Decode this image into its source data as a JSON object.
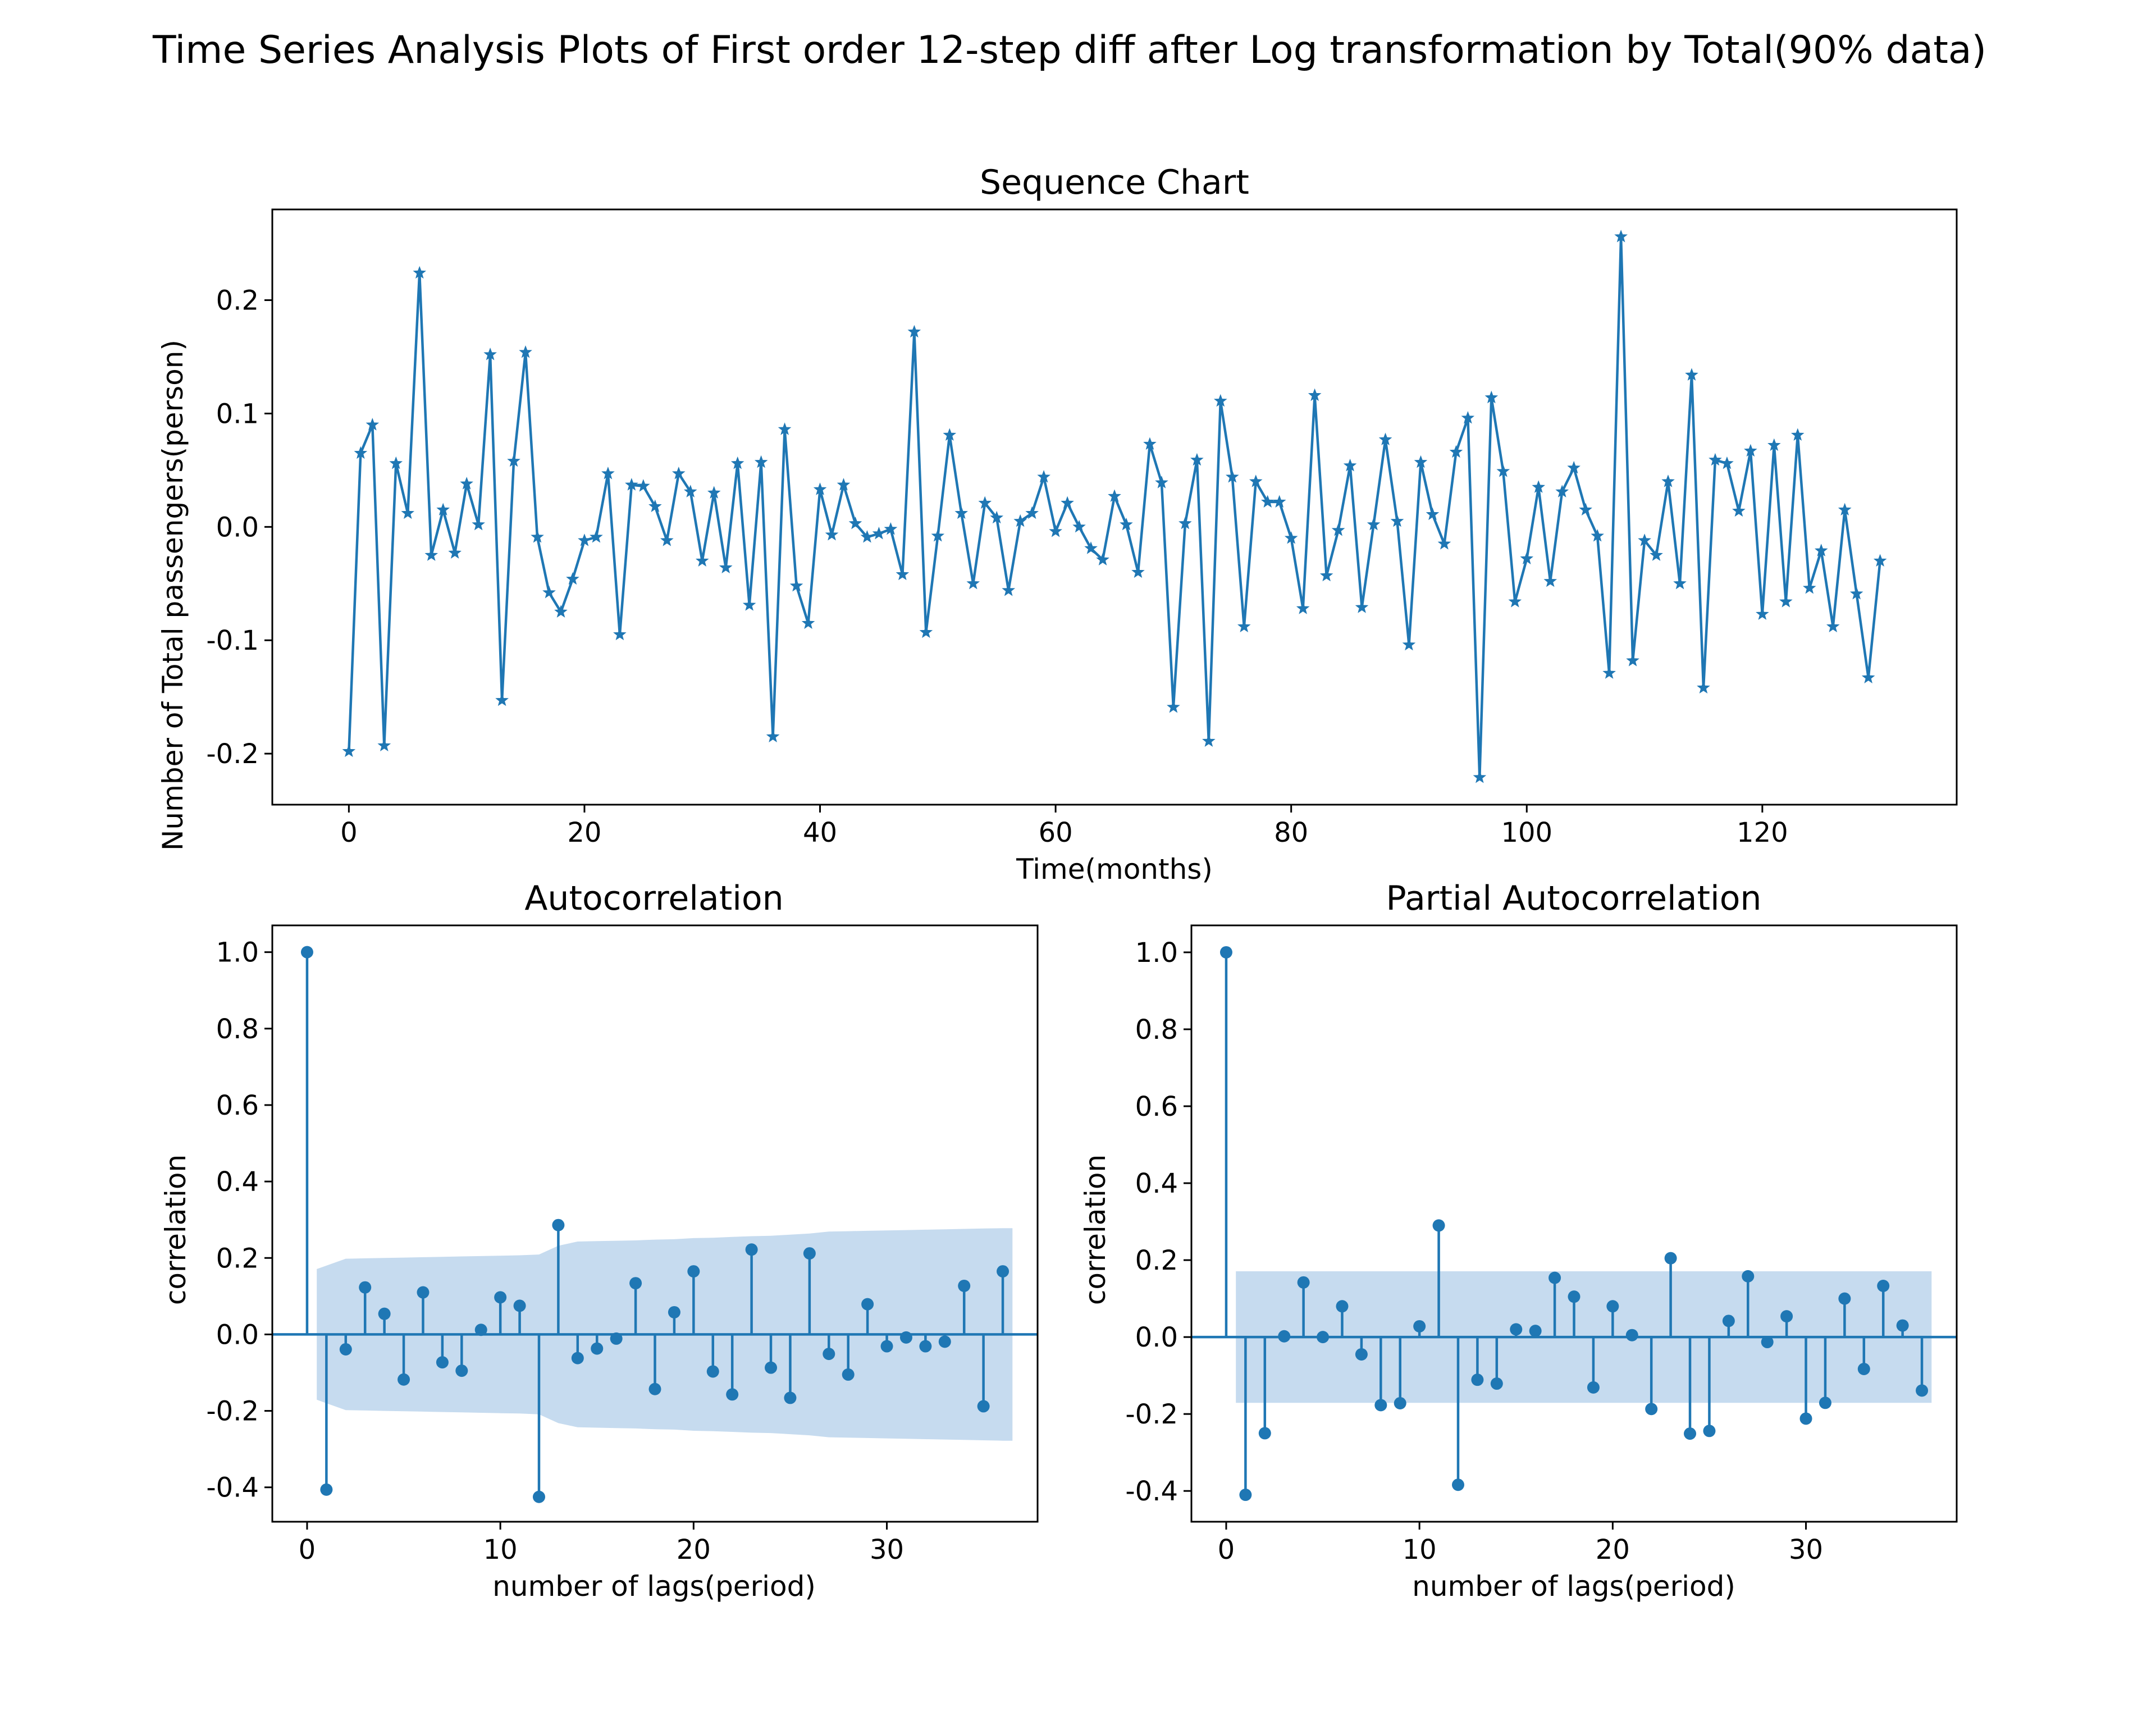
{
  "figure": {
    "suptitle": "Time Series Analysis Plots of First order 12-step diff after Log transformation by Total(90% data)"
  },
  "chart_data": [
    {
      "type": "line",
      "title": "Sequence Chart",
      "xlabel": "Time(months)",
      "ylabel": "Number of Total passengers(person)",
      "marker": "star",
      "color": "#1f77b4",
      "xlim": [
        -6.5,
        136.5
      ],
      "ylim": [
        -0.245,
        0.28
      ],
      "xticks": [
        0,
        20,
        40,
        60,
        80,
        100,
        120
      ],
      "xtick_labels": [
        "0",
        "20",
        "40",
        "60",
        "80",
        "100",
        "120"
      ],
      "yticks": [
        -0.2,
        -0.1,
        0.0,
        0.1,
        0.2
      ],
      "ytick_labels": [
        "-0.2",
        "-0.1",
        "0.0",
        "0.1",
        "0.2"
      ],
      "x_start": 0,
      "values": [
        -0.198,
        0.065,
        0.09,
        -0.193,
        0.056,
        0.012,
        0.224,
        -0.025,
        0.015,
        -0.023,
        0.038,
        0.002,
        0.152,
        -0.153,
        0.058,
        0.154,
        -0.009,
        -0.058,
        -0.075,
        -0.046,
        -0.012,
        -0.009,
        0.047,
        -0.095,
        0.037,
        0.036,
        0.018,
        -0.012,
        0.047,
        0.031,
        -0.03,
        0.03,
        -0.036,
        0.056,
        -0.069,
        0.057,
        -0.185,
        0.086,
        -0.052,
        -0.085,
        0.033,
        -0.007,
        0.037,
        0.003,
        -0.009,
        -0.006,
        -0.002,
        -0.042,
        0.172,
        -0.093,
        -0.008,
        0.081,
        0.012,
        -0.05,
        0.021,
        0.008,
        -0.056,
        0.005,
        0.012,
        0.044,
        -0.004,
        0.021,
        0.0,
        -0.019,
        -0.029,
        0.027,
        0.002,
        -0.04,
        0.073,
        0.039,
        -0.159,
        0.003,
        0.059,
        -0.189,
        0.111,
        0.044,
        -0.088,
        0.04,
        0.022,
        0.022,
        -0.01,
        -0.072,
        0.116,
        -0.043,
        -0.003,
        0.054,
        -0.071,
        0.002,
        0.077,
        0.005,
        -0.104,
        0.057,
        0.011,
        -0.015,
        0.066,
        0.096,
        -0.221,
        0.114,
        0.049,
        -0.066,
        -0.028,
        0.035,
        -0.048,
        0.031,
        0.052,
        0.015,
        -0.008,
        -0.129,
        0.256,
        -0.118,
        -0.012,
        -0.025,
        0.04,
        -0.05,
        0.134,
        -0.142,
        0.059,
        0.056,
        0.014,
        0.067,
        -0.077,
        0.072,
        -0.066,
        0.081,
        -0.054,
        -0.021,
        -0.088,
        0.015,
        -0.059,
        -0.133,
        -0.03
      ]
    },
    {
      "type": "stem",
      "title": "Autocorrelation",
      "xlabel": "number of lags(period)",
      "ylabel": "correlation",
      "color": "#1f77b4",
      "band_color": "#c6dbef",
      "xlim": [
        -1.8,
        37.8
      ],
      "ylim": [
        -0.49,
        1.07
      ],
      "xticks": [
        0,
        10,
        20,
        30
      ],
      "xtick_labels": [
        "0",
        "10",
        "20",
        "30"
      ],
      "yticks": [
        -0.4,
        -0.2,
        0.0,
        0.2,
        0.4,
        0.6,
        0.8,
        1.0
      ],
      "ytick_labels": [
        "-0.4",
        "-0.2",
        "0.0",
        "0.2",
        "0.4",
        "0.6",
        "0.8",
        "1.0"
      ],
      "lags": [
        0,
        1,
        2,
        3,
        4,
        5,
        6,
        7,
        8,
        9,
        10,
        11,
        12,
        13,
        14,
        15,
        16,
        17,
        18,
        19,
        20,
        21,
        22,
        23,
        24,
        25,
        26,
        27,
        28,
        29,
        30,
        31,
        32,
        33,
        34,
        35,
        36
      ],
      "values": [
        1.0,
        -0.406,
        -0.039,
        0.123,
        0.054,
        -0.118,
        0.11,
        -0.073,
        -0.095,
        0.012,
        0.097,
        0.075,
        -0.425,
        0.286,
        -0.062,
        -0.037,
        -0.011,
        0.134,
        -0.143,
        0.058,
        0.165,
        -0.097,
        -0.157,
        0.222,
        -0.087,
        -0.166,
        0.212,
        -0.051,
        -0.105,
        0.079,
        -0.031,
        -0.008,
        -0.031,
        -0.019,
        0.127,
        -0.188,
        0.165
      ],
      "confidence_band": {
        "lags": [
          0.5,
          1,
          2,
          3,
          4,
          5,
          6,
          7,
          8,
          9,
          10,
          11,
          12,
          13,
          14,
          15,
          16,
          17,
          18,
          19,
          20,
          21,
          22,
          23,
          24,
          25,
          26,
          27,
          28,
          29,
          30,
          31,
          32,
          33,
          34,
          35,
          36,
          36.5
        ],
        "upper": [
          0.171,
          0.18,
          0.198,
          0.199,
          0.2,
          0.201,
          0.202,
          0.203,
          0.204,
          0.205,
          0.206,
          0.207,
          0.209,
          0.232,
          0.243,
          0.244,
          0.245,
          0.246,
          0.248,
          0.249,
          0.252,
          0.253,
          0.255,
          0.257,
          0.258,
          0.261,
          0.264,
          0.269,
          0.27,
          0.271,
          0.272,
          0.273,
          0.274,
          0.275,
          0.276,
          0.277,
          0.278,
          0.278
        ]
      }
    },
    {
      "type": "stem",
      "title": "Partial Autocorrelation",
      "xlabel": "number of lags(period)",
      "ylabel": "correlation",
      "color": "#1f77b4",
      "band_color": "#c6dbef",
      "xlim": [
        -1.8,
        37.8
      ],
      "ylim": [
        -0.48,
        1.07
      ],
      "xticks": [
        0,
        10,
        20,
        30
      ],
      "xtick_labels": [
        "0",
        "10",
        "20",
        "30"
      ],
      "yticks": [
        -0.4,
        -0.2,
        0.0,
        0.2,
        0.4,
        0.6,
        0.8,
        1.0
      ],
      "ytick_labels": [
        "-0.4",
        "-0.2",
        "0.0",
        "0.2",
        "0.4",
        "0.6",
        "0.8",
        "1.0"
      ],
      "lags": [
        0,
        1,
        2,
        3,
        4,
        5,
        6,
        7,
        8,
        9,
        10,
        11,
        12,
        13,
        14,
        15,
        16,
        17,
        18,
        19,
        20,
        21,
        22,
        23,
        24,
        25,
        26,
        27,
        28,
        29,
        30,
        31,
        32,
        33,
        34,
        35,
        36
      ],
      "values": [
        1.0,
        -0.41,
        -0.25,
        0.002,
        0.142,
        0.0,
        0.08,
        -0.045,
        -0.177,
        -0.172,
        0.028,
        0.29,
        -0.384,
        -0.111,
        -0.121,
        0.02,
        0.016,
        0.154,
        0.105,
        -0.131,
        0.08,
        0.005,
        -0.187,
        0.205,
        -0.251,
        -0.244,
        0.042,
        0.158,
        -0.013,
        0.054,
        -0.212,
        -0.171,
        0.1,
        -0.083,
        0.133,
        0.03,
        -0.139
      ],
      "confidence_band": {
        "lags": [
          0.5,
          36.5
        ],
        "upper": [
          0.171,
          0.171
        ]
      }
    }
  ]
}
